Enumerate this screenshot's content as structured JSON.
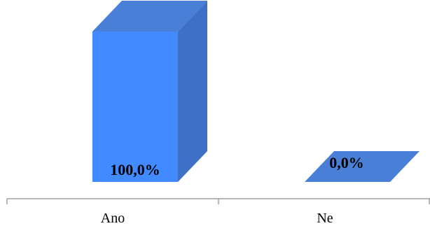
{
  "chart_data": {
    "type": "bar",
    "style": "3d",
    "categories": [
      "Ano",
      "Ne"
    ],
    "values": [
      100.0,
      0.0
    ],
    "data_labels": [
      "100,0%",
      "0,0%"
    ],
    "ylim": [
      0,
      100
    ],
    "unit": "%",
    "grid": false,
    "legend": "none",
    "colors": {
      "front": "#428aff",
      "top": "#4a7fd8",
      "side": "#3f70c8",
      "axis": "#8c8c8c"
    }
  }
}
